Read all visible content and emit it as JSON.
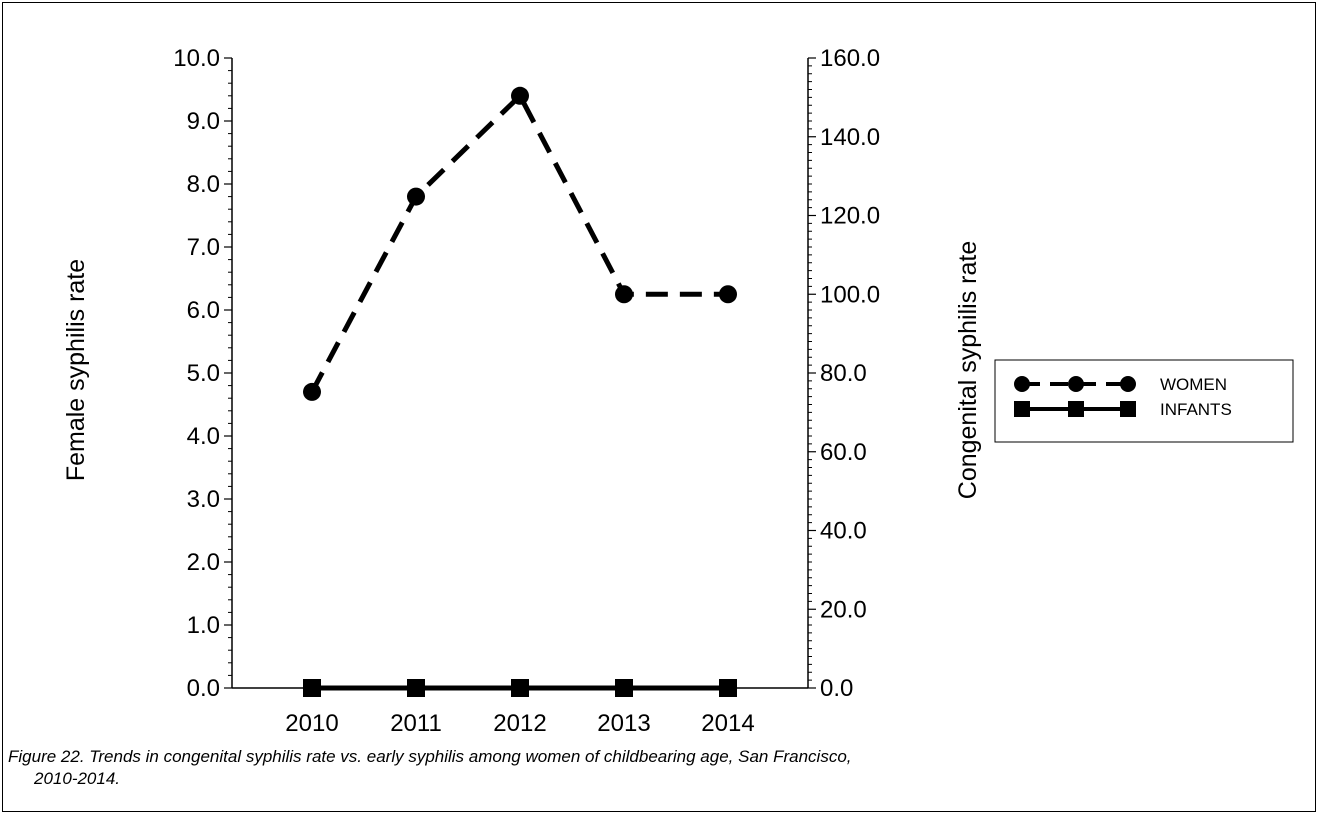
{
  "chart_data": {
    "type": "line",
    "categories": [
      "2010",
      "2011",
      "2012",
      "2013",
      "2014"
    ],
    "y_left": {
      "label": "Female syphilis rate",
      "range": [
        0,
        10
      ],
      "ticks": [
        "0.0",
        "1.0",
        "2.0",
        "3.0",
        "4.0",
        "5.0",
        "6.0",
        "7.0",
        "8.0",
        "9.0",
        "10.0"
      ]
    },
    "y_right": {
      "label": "Congenital syphilis rate",
      "range": [
        0,
        160
      ],
      "ticks": [
        "0.0",
        "20.0",
        "40.0",
        "60.0",
        "80.0",
        "100.0",
        "120.0",
        "140.0",
        "160.0"
      ]
    },
    "series": [
      {
        "name": "WOMEN",
        "axis": "left",
        "values": [
          4.7,
          7.8,
          9.4,
          6.25,
          6.25
        ],
        "line": "dashed",
        "marker": "circle",
        "color": "#000000"
      },
      {
        "name": "INFANTS",
        "axis": "right",
        "values": [
          0,
          0,
          0,
          0,
          0
        ],
        "line": "solid",
        "marker": "square",
        "color": "#000000"
      }
    ],
    "legend": "right",
    "grid": false
  },
  "caption": {
    "line1": "Figure 22.  Trends in congenital syphilis rate vs. early syphilis among women of childbearing age, San Francisco,",
    "line2": "2010-2014."
  }
}
